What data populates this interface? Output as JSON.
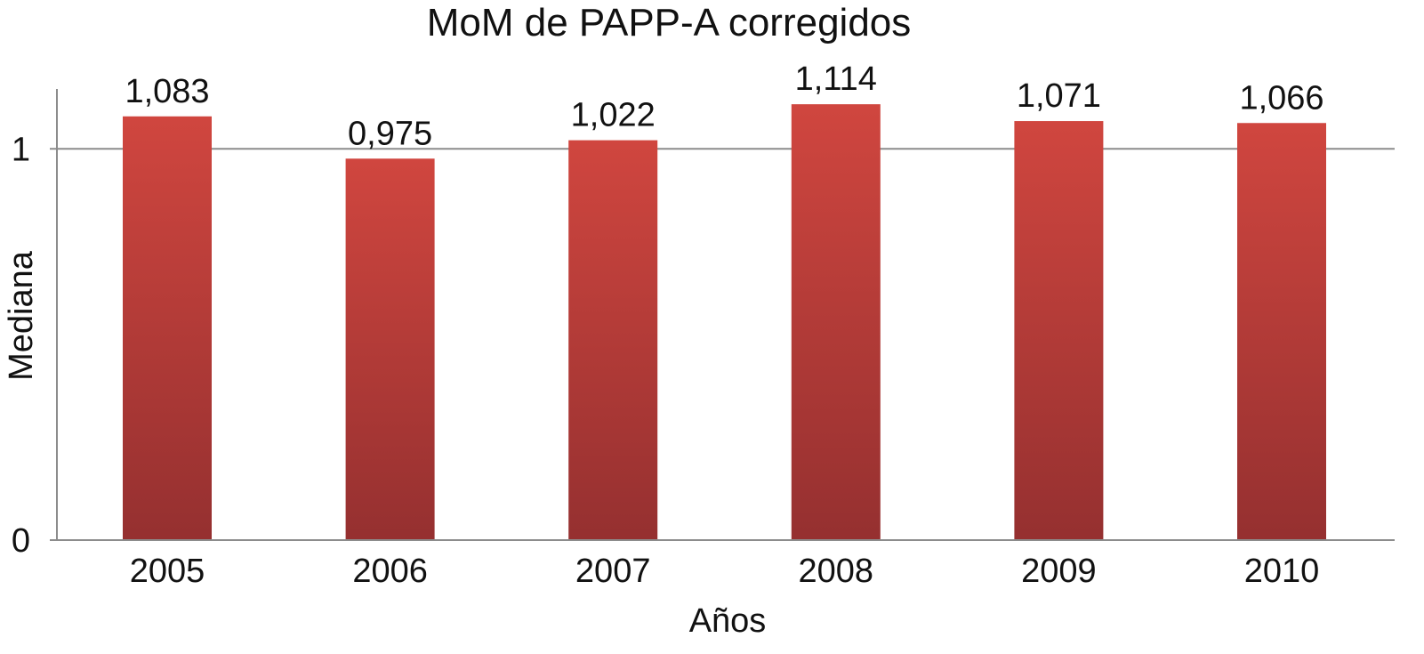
{
  "chart_data": {
    "type": "bar",
    "title": "MoM de PAPP-A corregidos",
    "xlabel": "Años",
    "ylabel": "Mediana",
    "categories": [
      "2005",
      "2006",
      "2007",
      "2008",
      "2009",
      "2010"
    ],
    "values": [
      1.083,
      0.975,
      1.022,
      1.114,
      1.071,
      1.066
    ],
    "value_labels": [
      "1,083",
      "0,975",
      "1,022",
      "1,114",
      "1,071",
      "1,066"
    ],
    "y_ticks": [
      0,
      1
    ],
    "y_tick_labels": [
      "0",
      "1"
    ],
    "ylim": [
      0,
      1.153
    ],
    "grid": true,
    "legend": "none",
    "bar_color_top": "#d0463f",
    "bar_color_bottom": "#953030"
  }
}
